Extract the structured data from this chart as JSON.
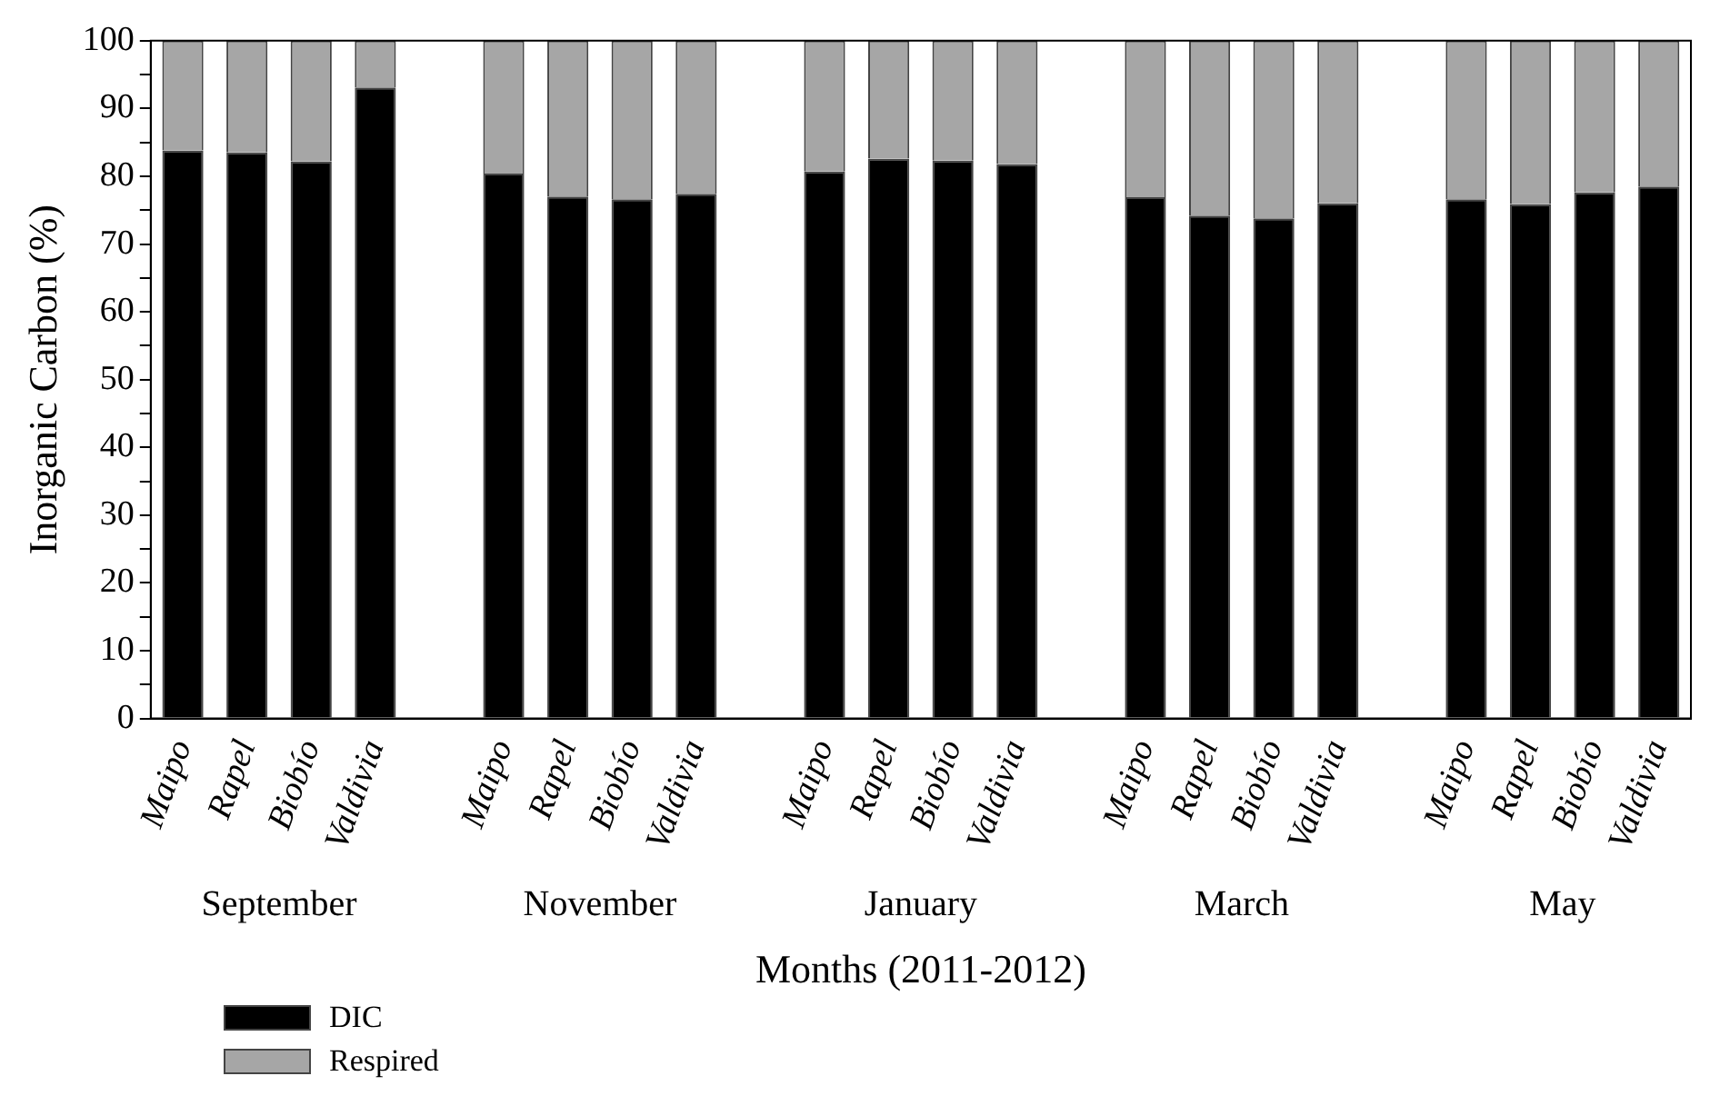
{
  "chart_data": {
    "type": "bar",
    "stacked": true,
    "xlabel": "Months (2011-2012)",
    "ylabel": "Inorganic Carbon (%)",
    "categories": [
      "Maipo",
      "Rapel",
      "Biobío",
      "Valdivia",
      null,
      "Maipo",
      "Rapel",
      "Biobío",
      "Valdivia",
      null,
      "Maipo",
      "Rapel",
      "Biobío",
      "Valdivia",
      null,
      "Maipo",
      "Rapel",
      "Biobío",
      "Valdivia",
      null,
      "Maipo",
      "Rapel",
      "Biobío",
      "Valdivia"
    ],
    "series": [
      {
        "name": "DIC",
        "color": "#000000",
        "values": [
          83.8,
          83.5,
          82.2,
          93.1,
          null,
          80.4,
          77.0,
          76.6,
          77.4,
          null,
          80.7,
          82.6,
          82.3,
          81.8,
          null,
          76.9,
          74.2,
          73.8,
          76.0,
          null,
          76.6,
          75.9,
          77.6,
          78.5
        ]
      },
      {
        "name": "Respired",
        "color": "#a6a6a6",
        "values": [
          16.2,
          16.5,
          17.8,
          6.9,
          null,
          19.6,
          23.0,
          23.4,
          22.6,
          null,
          19.3,
          17.4,
          17.7,
          18.2,
          null,
          23.1,
          25.8,
          26.2,
          24.0,
          null,
          23.4,
          24.1,
          22.4,
          21.5
        ]
      }
    ],
    "annotations": [
      "September",
      "November",
      "January",
      "March",
      "May"
    ],
    "ylim": [
      0,
      100
    ],
    "yticks": [
      0,
      {
        "value": 5,
        "label": null
      },
      10,
      {
        "value": 15,
        "label": null
      },
      20,
      {
        "value": 25,
        "label": null
      },
      30,
      {
        "value": 35,
        "label": null
      },
      40,
      {
        "value": 45,
        "label": null
      },
      50,
      {
        "value": 55,
        "label": null
      },
      60,
      {
        "value": 65,
        "label": null
      },
      70,
      {
        "value": 75,
        "label": null
      },
      80,
      {
        "value": 85,
        "label": null
      },
      90,
      {
        "value": 95,
        "label": null
      },
      100
    ],
    "grid": false,
    "legend": "bottom left"
  }
}
